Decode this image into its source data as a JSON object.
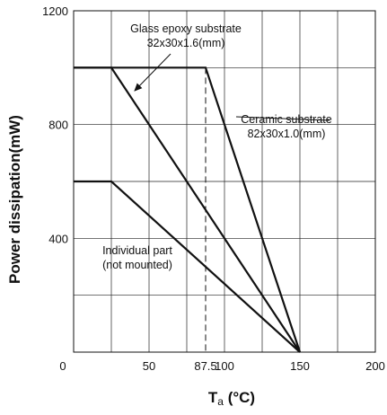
{
  "chart_data": {
    "type": "line",
    "xlabel_main": "T",
    "xlabel_sub": "a",
    "xlabel_unit": " (°C)",
    "ylabel": "Power dissipation(mW)",
    "xlim": [
      0,
      200
    ],
    "ylim": [
      0,
      1200
    ],
    "x_ticks": [
      {
        "value": 50,
        "label": "50"
      },
      {
        "value": 87.5,
        "label": "87.5"
      },
      {
        "value": 100,
        "label": "100"
      },
      {
        "value": 150,
        "label": "150"
      },
      {
        "value": 200,
        "label": "200"
      }
    ],
    "x_origin_label": "0",
    "y_ticks": [
      {
        "value": 400,
        "label": "400"
      },
      {
        "value": 800,
        "label": "800"
      },
      {
        "value": 1200,
        "label": "1200"
      }
    ],
    "grid": true,
    "x_grid": [
      25,
      50,
      75,
      100,
      125,
      150,
      175
    ],
    "y_grid": [
      200,
      400,
      600,
      800,
      1000
    ],
    "dashed_x": 87.5,
    "series": [
      {
        "key": "ceramic",
        "points": [
          [
            0,
            1000
          ],
          [
            87.5,
            1000
          ],
          [
            150,
            0
          ]
        ]
      },
      {
        "key": "glass",
        "points": [
          [
            0,
            1000
          ],
          [
            25,
            1000
          ],
          [
            150,
            0
          ]
        ]
      },
      {
        "key": "individual",
        "points": [
          [
            0,
            600
          ],
          [
            25,
            600
          ],
          [
            150,
            0
          ]
        ]
      }
    ],
    "annotations": [
      {
        "key": "glass",
        "lines": [
          "Glass epoxy substrate",
          "32x30x1.6(mm)"
        ]
      },
      {
        "key": "ceramic",
        "lines": [
          "Ceramic substrate",
          "82x30x1.0(mm)"
        ]
      },
      {
        "key": "individual",
        "lines": [
          "Individual part",
          "(not mounted)"
        ]
      }
    ]
  }
}
